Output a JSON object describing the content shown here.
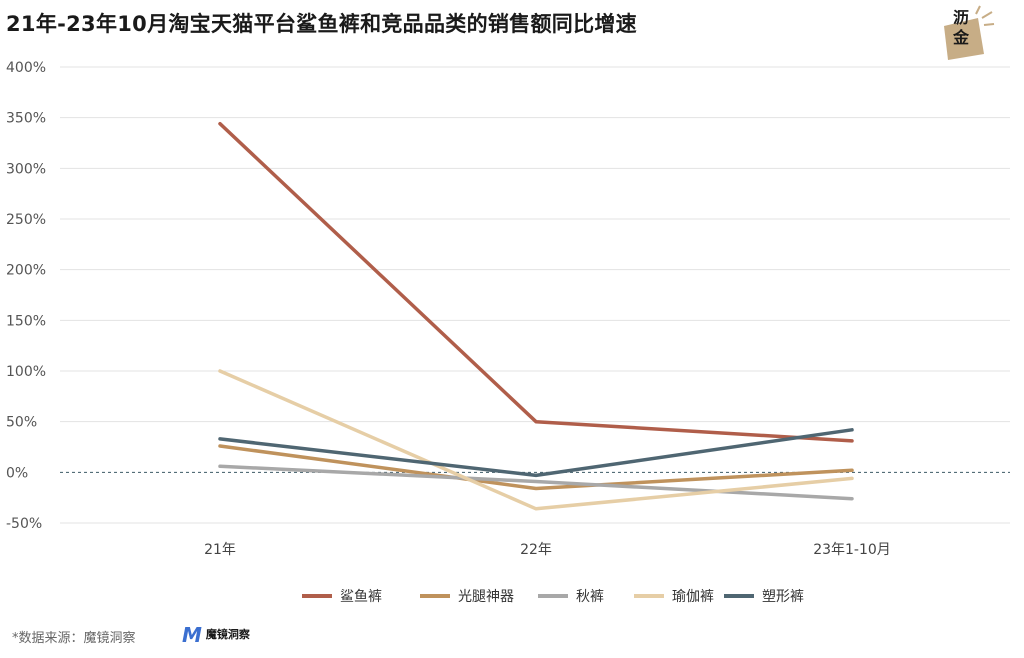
{
  "title": "21年-23年10月淘宝天猫平台鲨鱼裤和竞品品类的销售额同比增速",
  "logo": {
    "text_top": "沥",
    "text_bottom": "金"
  },
  "footer": {
    "source": "*数据来源：魔镜洞察",
    "brand_name": "魔镜洞察",
    "brand_mark": "M"
  },
  "colors": {
    "鲨鱼裤": "#b05e4a",
    "光腿神器": "#bf925c",
    "秋裤": "#a8a8a8",
    "瑜伽裤": "#e6ceA6",
    "塑形裤": "#4f6672",
    "grid": "#e3e3e3",
    "zero_line": "#3d5a66"
  },
  "chart_data": {
    "type": "line",
    "title": "21年-23年10月淘宝天猫平台鲨鱼裤和竞品品类的销售额同比增速",
    "categories": [
      "21年",
      "22年",
      "23年1-10月"
    ],
    "y_ticks": [
      "400%",
      "350%",
      "300%",
      "250%",
      "200%",
      "150%",
      "100%",
      "50%",
      "0%",
      "-50%"
    ],
    "ylim": [
      -50,
      400
    ],
    "legend_position": "bottom",
    "series": [
      {
        "name": "鲨鱼裤",
        "values": [
          344,
          50,
          31
        ]
      },
      {
        "name": "光腿神器",
        "values": [
          26,
          -16,
          2
        ]
      },
      {
        "name": "秋裤",
        "values": [
          6,
          -9,
          -26
        ]
      },
      {
        "name": "瑜伽裤",
        "values": [
          100,
          -36,
          -6
        ]
      },
      {
        "name": "塑形裤",
        "values": [
          33,
          -3,
          42
        ]
      }
    ]
  }
}
